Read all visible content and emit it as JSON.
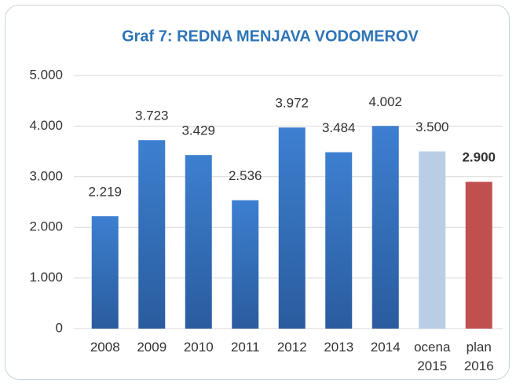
{
  "chart_data": {
    "type": "bar",
    "title": "Graf 7: REDNA MENJAVA VODOMEROV",
    "categories": [
      "2008",
      "2009",
      "2010",
      "2011",
      "2012",
      "2013",
      "2014",
      "ocena 2015",
      "plan 2016"
    ],
    "values": [
      2219,
      3723,
      3429,
      2536,
      3972,
      3484,
      4002,
      3500,
      2900
    ],
    "value_labels": [
      "2.219",
      "3.723",
      "3.429",
      "2.536",
      "3.972",
      "3.484",
      "4.002",
      "3.500",
      "2.900"
    ],
    "colors": [
      "#3877c6",
      "#3877c6",
      "#3877c6",
      "#3877c6",
      "#3877c6",
      "#3877c6",
      "#3877c6",
      "#b9cde5",
      "#c0504d"
    ],
    "ylim": [
      0,
      5000
    ],
    "yticks": [
      0,
      {
        "value": 1000,
        "label": "1.000"
      },
      {
        "value": 2000,
        "label": "2.000"
      },
      {
        "value": 3000,
        "label": "3.000"
      },
      {
        "value": 4000,
        "label": "4.000"
      },
      {
        "value": 5000,
        "label": "5.000"
      }
    ],
    "grid": true
  }
}
